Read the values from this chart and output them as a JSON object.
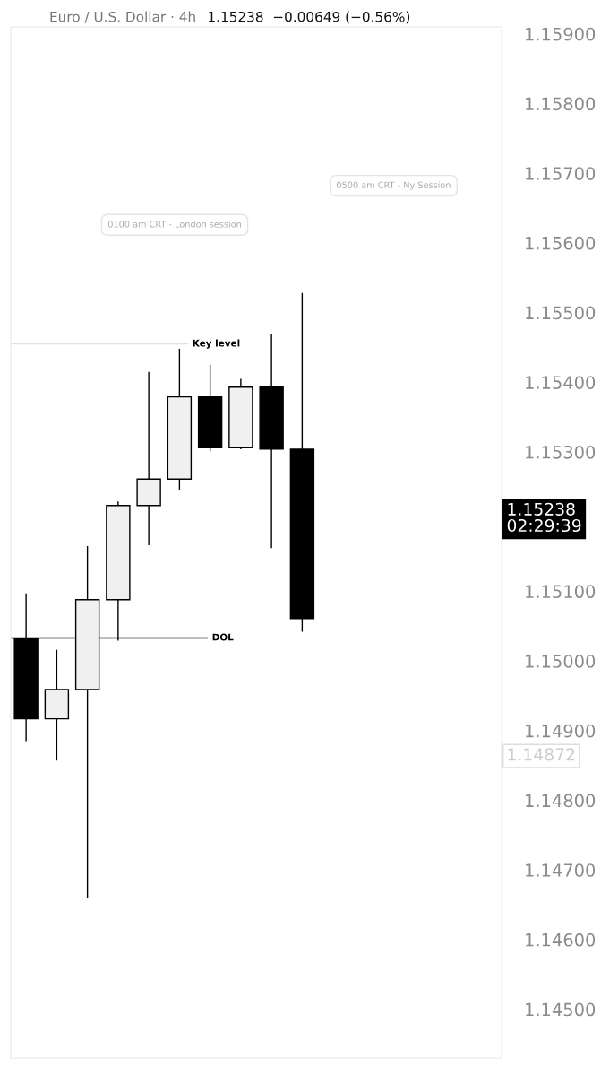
{
  "chart_data": {
    "type": "candlestick",
    "title": "Euro / U.S. Dollar · 4h",
    "subtitle": "1.15238  −0.00649 (−0.56%)",
    "categories": [
      null,
      null,
      null,
      null,
      null,
      null,
      null,
      null,
      null,
      null,
      null,
      null,
      null,
      null,
      null,
      null
    ],
    "ohlc": [
      [
        1.15032,
        1.15097,
        1.14885,
        1.14917
      ],
      [
        1.14917,
        1.15016,
        1.14857,
        1.14959
      ],
      [
        1.14959,
        1.15165,
        1.14659,
        1.15088
      ],
      [
        1.15088,
        1.15229,
        1.15029,
        1.15223
      ],
      [
        1.15223,
        1.15415,
        1.15166,
        1.15261
      ],
      [
        1.15261,
        1.15448,
        1.15246,
        1.15379
      ],
      [
        1.15379,
        1.15425,
        1.15301,
        1.15306
      ],
      [
        1.15306,
        1.15405,
        1.15304,
        1.15393
      ],
      [
        1.15393,
        1.1547,
        1.15162,
        1.15304
      ],
      [
        1.15304,
        1.15528,
        1.15042,
        1.15061
      ],
      null,
      null,
      null,
      null,
      null,
      null
    ],
    "colors": [
      "#000000",
      "#f0f0f0",
      "#f0f0f0",
      "#f0f0f0",
      "#f0f0f0",
      "#f0f0f0",
      "#000000",
      "#f0f0f0",
      "#000000",
      "#000000",
      null,
      null,
      null,
      null,
      null,
      null
    ],
    "ylim": [
      1.1443,
      1.1591
    ],
    "yticks": [
      {
        "value": 1.159,
        "label": "1.15900"
      },
      {
        "value": 1.158,
        "label": "1.15800"
      },
      {
        "value": 1.157,
        "label": "1.15700"
      },
      {
        "value": 1.156,
        "label": "1.15600"
      },
      {
        "value": 1.155,
        "label": "1.15500"
      },
      {
        "value": 1.154,
        "label": "1.15400"
      },
      {
        "value": 1.153,
        "label": "1.15300"
      },
      {
        "value": 1.151,
        "label": "1.15100"
      },
      {
        "value": 1.15,
        "label": "1.15000"
      },
      {
        "value": 1.149,
        "label": "1.14900"
      },
      {
        "value": 1.148,
        "label": "1.14800"
      },
      {
        "value": 1.147,
        "label": "1.14700"
      },
      {
        "value": 1.146,
        "label": "1.14600"
      },
      {
        "value": 1.145,
        "label": "1.14500"
      }
    ],
    "ref_lines": [
      {
        "axis": "y",
        "value": 1.15455,
        "label": "Key level",
        "color": "#e0e0e0"
      },
      {
        "axis": "y",
        "value": 1.15033,
        "label": "DOL",
        "color": "#000000"
      }
    ],
    "annotations": [
      "0500 am CRT - Ny Session",
      "0100 am CRT - London session",
      "1.15238\n02:29:39",
      "1.14872"
    ],
    "grid": false
  }
}
